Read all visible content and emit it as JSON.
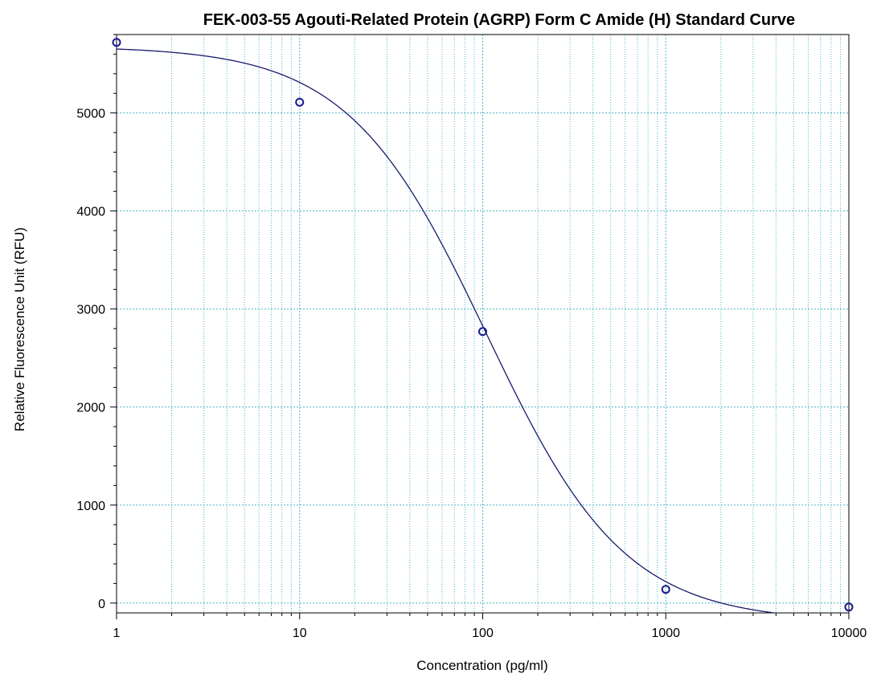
{
  "chart_data": {
    "type": "scatter",
    "title": "FEK-003-55 Agouti-Related Protein (AGRP) Form C Amide (H) Standard Curve",
    "xlabel": "Concentration (pg/ml)",
    "ylabel": "Relative Fluorescence Unit (RFU)",
    "x_scale": "log",
    "xlim": [
      1,
      10000
    ],
    "ylim": [
      -100,
      5800
    ],
    "x_ticks": [
      1,
      10,
      100,
      1000,
      10000
    ],
    "x_tick_labels": [
      "1",
      "10",
      "100",
      "1000",
      "10000"
    ],
    "y_ticks": [
      0,
      1000,
      2000,
      3000,
      4000,
      5000
    ],
    "y_tick_labels": [
      "0",
      "1000",
      "2000",
      "3000",
      "4000",
      "5000"
    ],
    "grid": true,
    "points": [
      {
        "x": 1,
        "y": 5720
      },
      {
        "x": 10,
        "y": 5110
      },
      {
        "x": 100,
        "y": 2770
      },
      {
        "x": 1000,
        "y": 140
      },
      {
        "x": 10000,
        "y": -40
      }
    ],
    "fit_curve": {
      "model": "4PL",
      "top": 5680,
      "bottom": -190,
      "ec50": 105,
      "hill": 1.15
    },
    "colors": {
      "point": "#1a1a8c",
      "curve": "#1a1a6e",
      "grid": "#4fb3c8",
      "axis": "#000000"
    }
  }
}
